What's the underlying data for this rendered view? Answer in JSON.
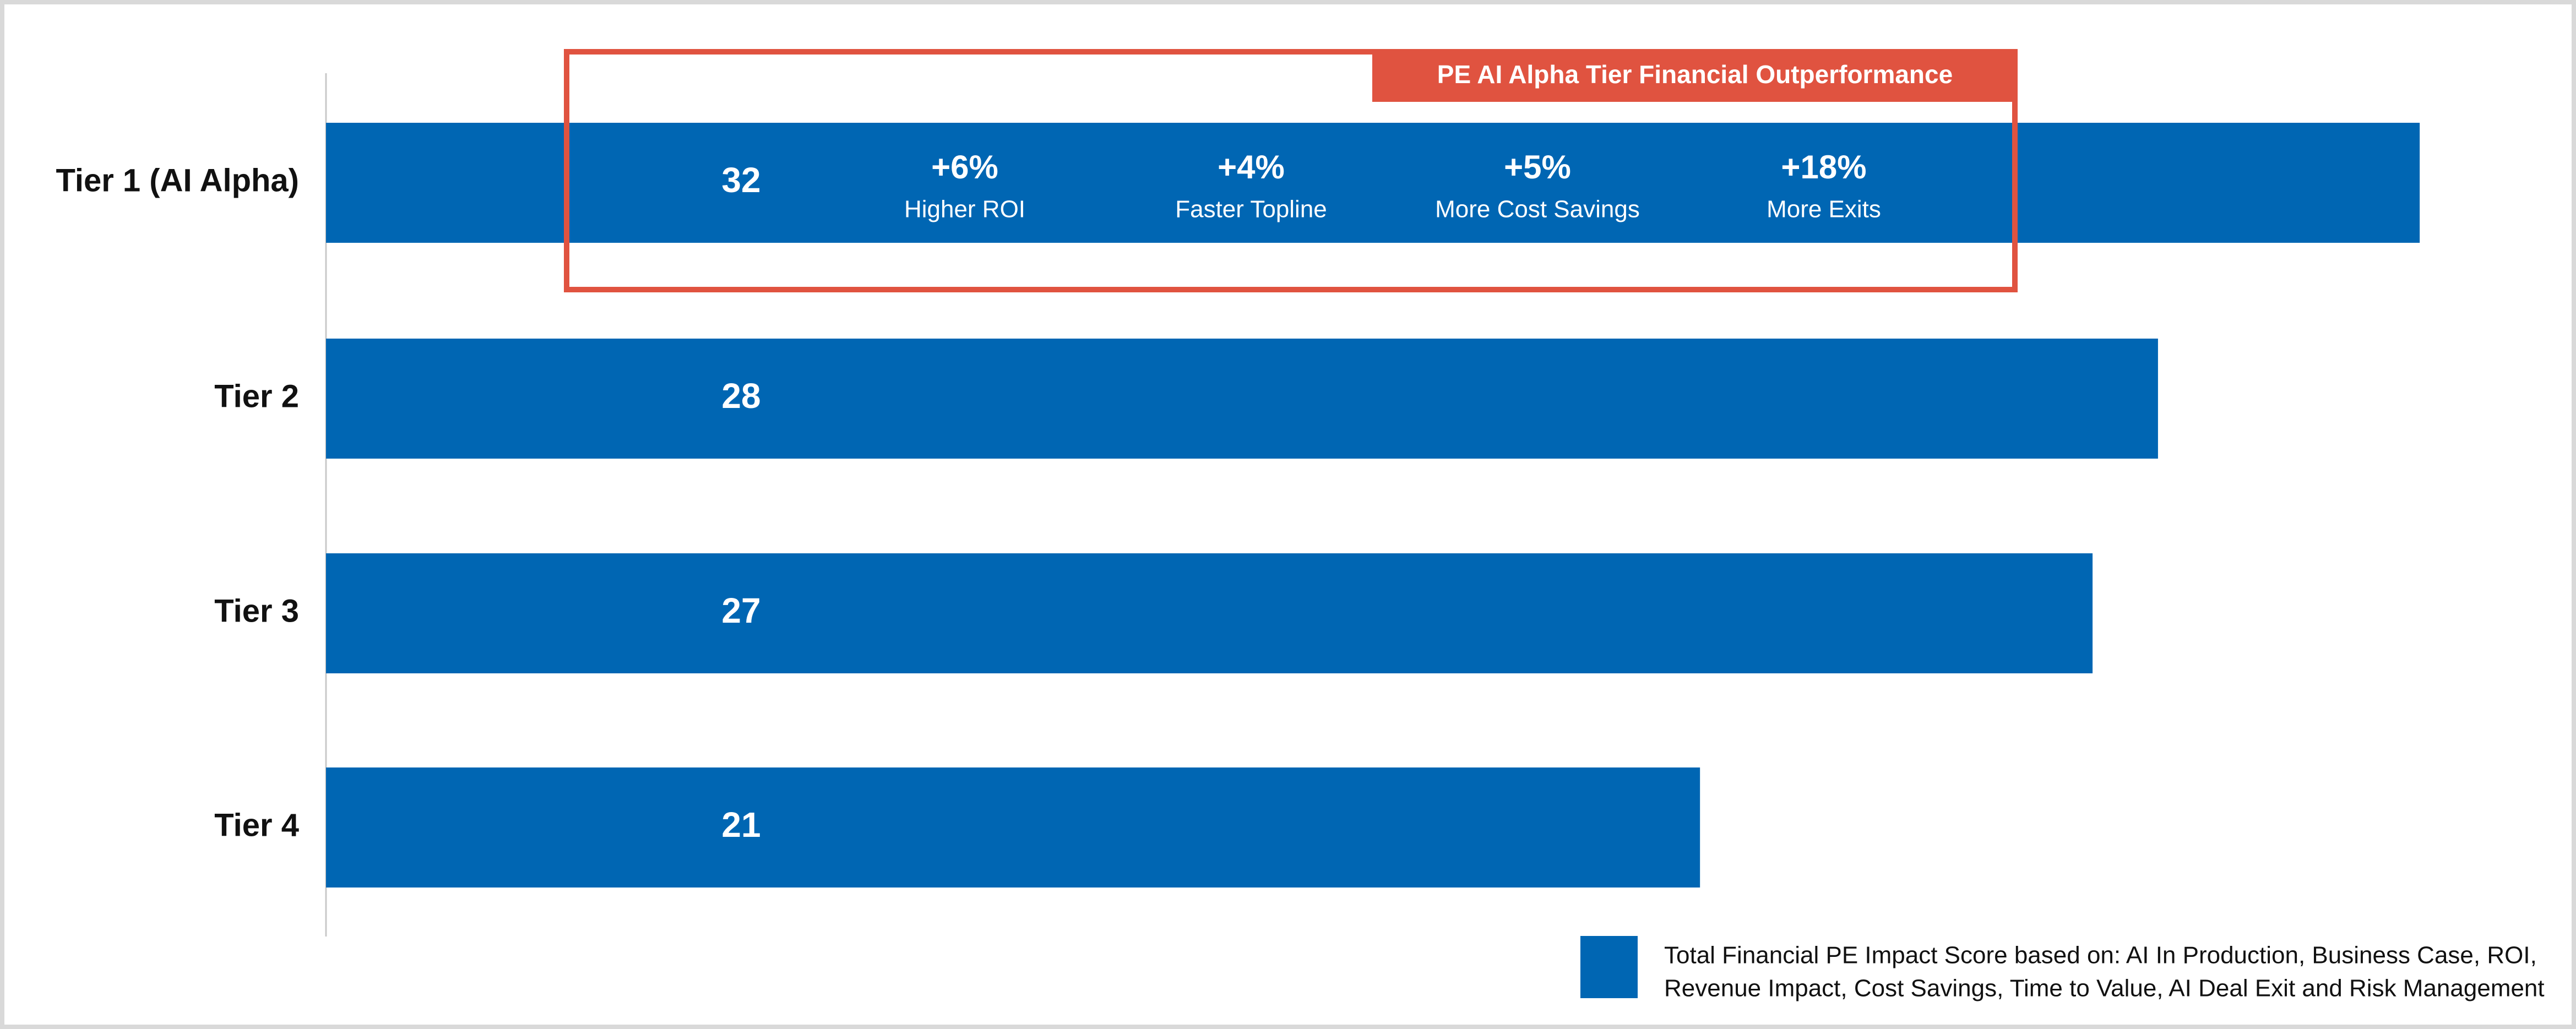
{
  "chart_data": {
    "type": "bar",
    "orientation": "horizontal",
    "categories": [
      "Tier 1 (AI Alpha)",
      "Tier 2",
      "Tier 3",
      "Tier 4"
    ],
    "values": [
      32,
      28,
      27,
      21
    ],
    "xlim": [
      0,
      33
    ],
    "grid": false,
    "legend": {
      "placement": "bottom-right",
      "lines": [
        "Total Financial PE Impact Score based on: AI In Production, Business Case, ROI,",
        "Revenue Impact, Cost Savings, Time to Value, AI Deal Exit and Risk Management"
      ]
    },
    "callout": {
      "title": "PE AI Alpha Tier Financial Outperformance",
      "metrics": [
        {
          "value": "+6%",
          "label": "Higher ROI"
        },
        {
          "value": "+4%",
          "label": "Faster Topline"
        },
        {
          "value": "+5%",
          "label": "More Cost Savings"
        },
        {
          "value": "+18%",
          "label": "More Exits"
        }
      ]
    }
  },
  "colors": {
    "bar": "#0066b3",
    "callout": "#e05340",
    "axis": "#c8c8c8",
    "text": "#111111"
  }
}
